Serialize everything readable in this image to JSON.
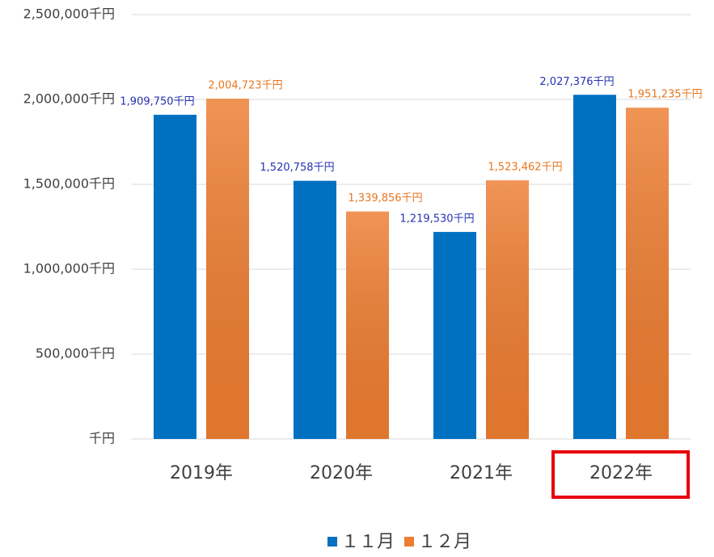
{
  "chart_data": {
    "type": "bar",
    "categories": [
      "2019年",
      "2020年",
      "2021年",
      "2022年"
    ],
    "series": [
      {
        "name": "１１月",
        "color": "#0070c0",
        "label_color": "#2632b5",
        "values": [
          1909750,
          1520758,
          1219530,
          2027376
        ],
        "value_labels": [
          "1,909,750千円",
          "1,520,758千円",
          "1,219,530千円",
          "2,027,376千円"
        ]
      },
      {
        "name": "１２月",
        "color": "#ed7d31",
        "label_color": "#e8761e",
        "values": [
          2004723,
          1339856,
          1523462,
          1951235
        ],
        "value_labels": [
          "2,004,723千円",
          "1,339,856千円",
          "1,523,462千円",
          "1,951,235千円"
        ]
      }
    ],
    "ylim": [
      0,
      2500000
    ],
    "yticks": [
      {
        "value": 0,
        "label": "千円"
      },
      {
        "value": 500000,
        "label": "500,000千円"
      },
      {
        "value": 1000000,
        "label": "1,000,000千円"
      },
      {
        "value": 1500000,
        "label": "1,500,000千円"
      },
      {
        "value": 2000000,
        "label": "2,000,000千円"
      },
      {
        "value": 2500000,
        "label": "2,500,000千円"
      }
    ],
    "grid": true,
    "legend": "bottom"
  }
}
